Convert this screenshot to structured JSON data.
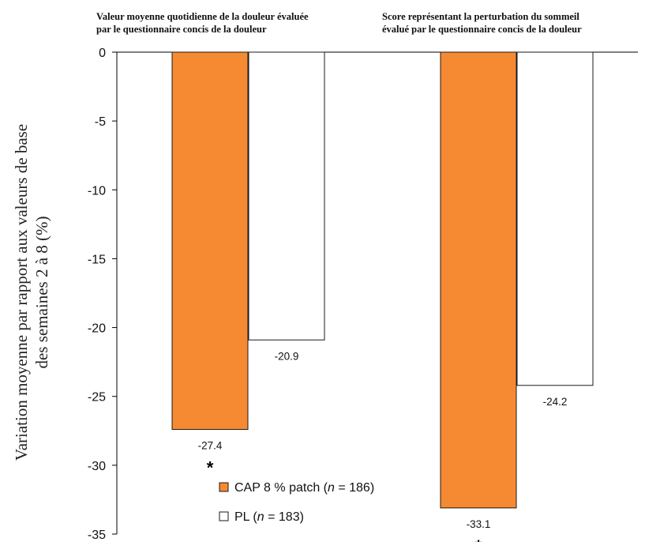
{
  "chart_data": {
    "type": "bar",
    "categories": [
      [
        "Valeur moyenne quotidienne de la douleur évaluée",
        "par le questionnaire concis de la douleur"
      ],
      [
        "Score représentant la perturbation du sommeil",
        "évalué par le questionnaire concis de la douleur"
      ]
    ],
    "series": [
      {
        "name_parts": [
          "CAP 8 % patch (",
          "n",
          " = 186)"
        ],
        "values": [
          -27.4,
          -33.1
        ],
        "labels": [
          "-27.4",
          "-33.1"
        ],
        "significant": [
          true,
          true
        ],
        "color": "#f58a33"
      },
      {
        "name_parts": [
          "PL  (",
          "n",
          " = 183)"
        ],
        "values": [
          -20.9,
          -24.2
        ],
        "labels": [
          "-20.9",
          "-24.2"
        ],
        "significant": [
          false,
          false
        ],
        "color": "#ffffff"
      }
    ],
    "ylabel": [
      "Variation moyenne par rapport aux valeurs de base",
      "des semaines 2 à 8 (%)"
    ],
    "yticks": [
      0,
      -5,
      -10,
      -15,
      -20,
      -25,
      -30,
      -35
    ],
    "ylim": [
      -35,
      0
    ],
    "significance_marker": "*",
    "legend_position": "bottom-center",
    "grid": false
  }
}
